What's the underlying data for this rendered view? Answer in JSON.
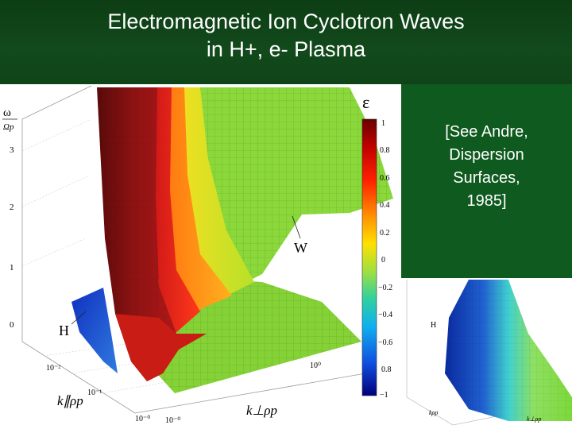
{
  "slide": {
    "title_line1": "Electromagnetic Ion Cyclotron Waves",
    "title_line2": "in H+, e- Plasma",
    "citation_line1": "[See Andre,",
    "citation_line2": "Dispersion",
    "citation_line3": "Surfaces,",
    "citation_line4": "1985]"
  },
  "main_plot": {
    "yaxis_label_top": "ω",
    "yaxis_label_bottom": "Ωp",
    "yticks": [
      "3",
      "2",
      "1",
      "0"
    ],
    "xtick_left": [
      "10⁻²",
      "10⁻¹",
      "10⁻⁰"
    ],
    "xtick_bottom": [
      "10⁻⁰",
      "10⁰"
    ],
    "kpar_label": "k∥ρp",
    "kperp_label": "k⊥ρp",
    "branch_w": "W",
    "branch_h": "H"
  },
  "colorbar": {
    "label": "ε",
    "ticks": [
      "1",
      "0.8",
      "0.6",
      "0.4",
      "0.2",
      "0",
      "−0.2",
      "−0.4",
      "−0.6",
      "0.8",
      "−1"
    ]
  },
  "inset_plot": {
    "branch_h": "H",
    "kpar_label": "kρp",
    "kperp_label": "k⊥ρp"
  }
}
